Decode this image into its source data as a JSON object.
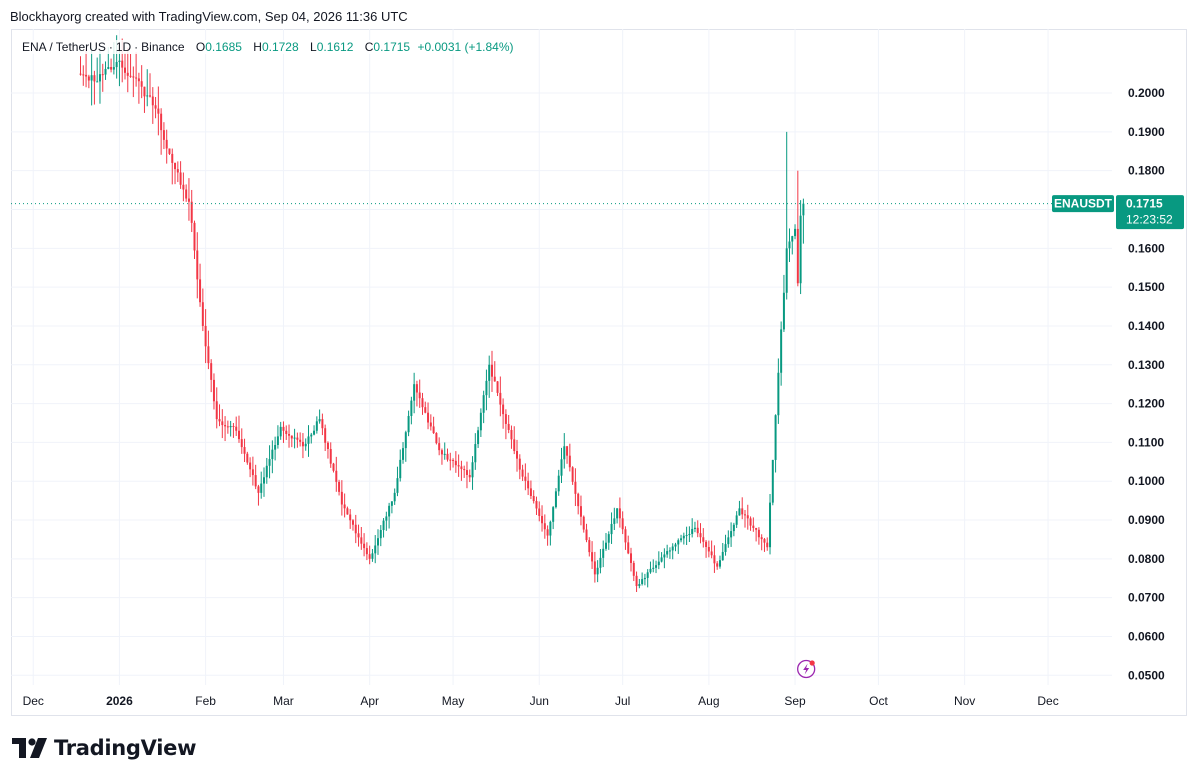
{
  "header": {
    "attribution": "Blockhayorg created with TradingView.com, Sep 04, 2026 11:36 UTC"
  },
  "legend": {
    "symbol": "ENA / TetherUS",
    "interval": "1D",
    "exchange": "Binance",
    "open_label": "O",
    "open": "0.1685",
    "high_label": "H",
    "high": "0.1728",
    "low_label": "L",
    "low": "0.1612",
    "close_label": "C",
    "close": "0.1715",
    "change": "+0.0031 (+1.84%)"
  },
  "price_tag": {
    "ticker": "ENAUSDT",
    "price": "0.1715",
    "countdown": "12:23:52"
  },
  "footer": {
    "brand": "TradingView"
  },
  "colors": {
    "up": "#089981",
    "down": "#f23645",
    "grid": "#f0f3fa",
    "text": "#131722",
    "tag_bg": "#089981"
  },
  "chart_data": {
    "type": "candlestick",
    "interval": "1D",
    "y_axis": {
      "ticks": [
        "0.0500",
        "0.0600",
        "0.0700",
        "0.0800",
        "0.0900",
        "0.1000",
        "0.1100",
        "0.1200",
        "0.1300",
        "0.1400",
        "0.1500",
        "0.1600",
        "0.1700",
        "0.1800",
        "0.1900",
        "0.2000"
      ],
      "range": [
        0.0475,
        0.2165
      ]
    },
    "x_axis": {
      "ticks": [
        "Dec",
        "2026",
        "Feb",
        "Mar",
        "Apr",
        "May",
        "Jun",
        "Jul",
        "Aug",
        "Sep",
        "Oct",
        "Nov",
        "Dec"
      ],
      "range": [
        "2025-11-23",
        "2026-12-24"
      ]
    },
    "grid": true,
    "last_price": 0.1715,
    "series": [
      {
        "anchors": [
          {
            "date": "2025-12-17",
            "close": 0.205
          },
          {
            "date": "2025-12-24",
            "close": 0.203
          },
          {
            "date": "2025-12-31",
            "close": 0.208
          },
          {
            "date": "2026-01-06",
            "close": 0.204
          },
          {
            "date": "2026-01-14",
            "close": 0.196
          },
          {
            "date": "2026-01-20",
            "close": 0.182
          },
          {
            "date": "2026-01-26",
            "close": 0.172
          },
          {
            "date": "2026-01-31",
            "close": 0.14
          },
          {
            "date": "2026-02-05",
            "close": 0.116
          },
          {
            "date": "2026-02-12",
            "close": 0.113
          },
          {
            "date": "2026-02-20",
            "close": 0.097
          },
          {
            "date": "2026-02-28",
            "close": 0.114
          },
          {
            "date": "2026-03-08",
            "close": 0.109
          },
          {
            "date": "2026-03-14",
            "close": 0.116
          },
          {
            "date": "2026-03-22",
            "close": 0.094
          },
          {
            "date": "2026-04-01",
            "close": 0.08
          },
          {
            "date": "2026-04-10",
            "close": 0.097
          },
          {
            "date": "2026-04-17",
            "close": 0.125
          },
          {
            "date": "2026-04-26",
            "close": 0.108
          },
          {
            "date": "2026-05-07",
            "close": 0.101
          },
          {
            "date": "2026-05-14",
            "close": 0.13
          },
          {
            "date": "2026-05-25",
            "close": 0.103
          },
          {
            "date": "2026-06-04",
            "close": 0.086
          },
          {
            "date": "2026-06-10",
            "close": 0.109
          },
          {
            "date": "2026-06-21",
            "close": 0.076
          },
          {
            "date": "2026-06-29",
            "close": 0.093
          },
          {
            "date": "2026-07-06",
            "close": 0.073
          },
          {
            "date": "2026-07-17",
            "close": 0.082
          },
          {
            "date": "2026-07-27",
            "close": 0.088
          },
          {
            "date": "2026-08-04",
            "close": 0.078
          },
          {
            "date": "2026-08-12",
            "close": 0.093
          },
          {
            "date": "2026-08-22",
            "close": 0.083
          },
          {
            "date": "2026-08-25",
            "close": 0.117
          },
          {
            "date": "2026-08-29",
            "close": 0.16
          },
          {
            "date": "2026-09-01",
            "close": 0.165
          },
          {
            "date": "2026-09-02",
            "close": 0.151
          },
          {
            "date": "2026-09-03",
            "close": 0.1684
          },
          {
            "date": "2026-09-04",
            "close": 0.1715
          }
        ],
        "notable_highs": [
          {
            "date": "2026-08-29",
            "high": 0.19
          },
          {
            "date": "2026-09-02",
            "high": 0.18
          }
        ]
      }
    ]
  }
}
